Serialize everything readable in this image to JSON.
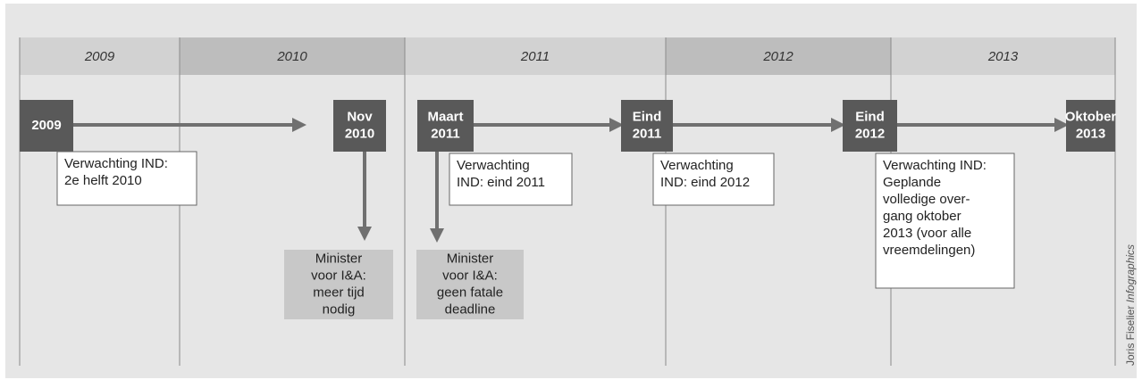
{
  "years": [
    "2009",
    "2010",
    "2011",
    "2012",
    "2013"
  ],
  "milestones": [
    [
      "2009"
    ],
    [
      "Nov",
      "2010"
    ],
    [
      "Maart",
      "2011"
    ],
    [
      "Eind",
      "2011"
    ],
    [
      "Eind",
      "2012"
    ],
    [
      "Oktober",
      "2013"
    ]
  ],
  "notes": [
    [
      "Verwachting IND:",
      "2e helft 2010"
    ],
    [
      "Verwachting",
      "IND: eind 2011"
    ],
    [
      "Verwachting",
      "IND: eind 2012"
    ],
    [
      "Verwachting IND:",
      "Geplande",
      "volledige over-",
      "gang oktober",
      "2013 (voor alle",
      "vreemdelingen)"
    ]
  ],
  "minister": [
    [
      "Minister",
      "voor I&A:",
      "meer tijd",
      "nodig"
    ],
    [
      "Minister",
      "voor I&A:",
      "geen fatale",
      "deadline"
    ]
  ],
  "credit": {
    "name": "Joris Fiselier",
    "label": "Infographics"
  }
}
